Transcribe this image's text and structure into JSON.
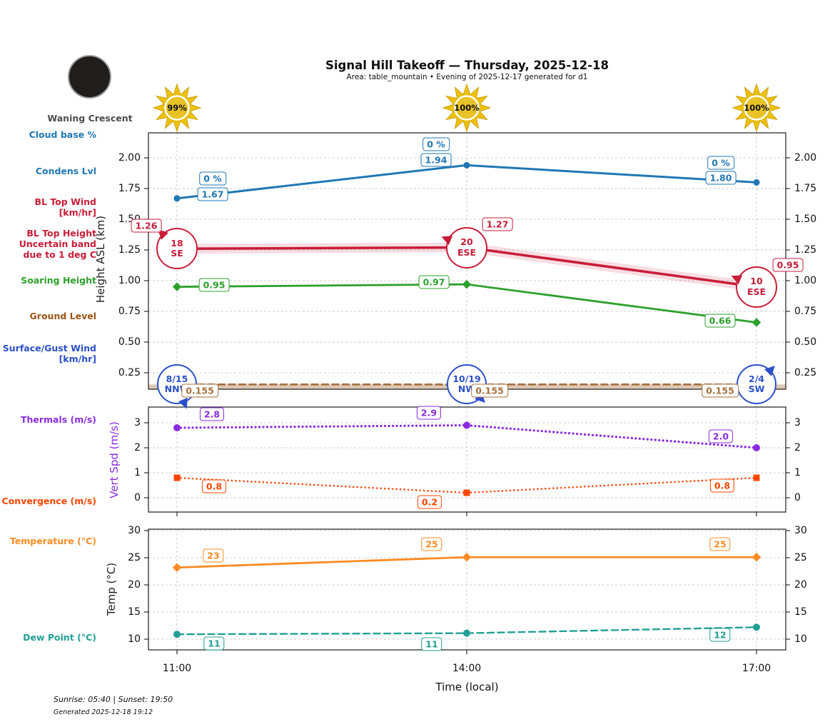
{
  "header": {
    "title": "Signal Hill Takeoff — Thursday, 2025-12-18",
    "subtitle": "Area: table_mountain • Evening of 2025-12-17 generated for d1",
    "moon_phase": "Waning Crescent",
    "sun_pcts": [
      "99%",
      "100%",
      "100%"
    ]
  },
  "colors": {
    "blue": "#2077b4",
    "crimson": "#c81d38",
    "green": "#2ca02c",
    "brown": "#a5703c",
    "brown_text": "#9c5518",
    "royal": "#2b50c8",
    "purple": "#8a2be2",
    "orangered": "#ff4500",
    "orange": "#fb8b23",
    "teal": "#23a096",
    "grid": "#cdcdcd",
    "spine": "#2b2b2b",
    "sun_gold": "#edc00c",
    "sun_core": "#e8c227"
  },
  "left_labels": [
    {
      "id": "cloud_base",
      "color_key": "blue",
      "lines": [
        "Cloud base %"
      ]
    },
    {
      "id": "condens",
      "color_key": "blue",
      "lines": [
        "Condens Lvl"
      ]
    },
    {
      "id": "bl_top_wind",
      "color_key": "crimson",
      "lines": [
        "BL Top Wind",
        "[km/hr]"
      ]
    },
    {
      "id": "bl_top_height",
      "color_key": "crimson",
      "lines": [
        "BL Top Height",
        "Uncertain band",
        "due to 1 deg C"
      ]
    },
    {
      "id": "soaring",
      "color_key": "green",
      "lines": [
        "Soaring Height"
      ]
    },
    {
      "id": "ground",
      "color_key": "brown_text",
      "lines": [
        "Ground Level"
      ]
    },
    {
      "id": "surface",
      "color_key": "royal",
      "lines": [
        "Surface/Gust Wind",
        "[km/hr]"
      ]
    },
    {
      "id": "thermals",
      "color_key": "purple",
      "lines": [
        "Thermals (m/s)"
      ]
    },
    {
      "id": "convergence",
      "color_key": "orangered",
      "lines": [
        "Convergence (m/s)"
      ]
    },
    {
      "id": "temperature",
      "color_key": "orange",
      "lines": [
        "Temperature (°C)"
      ]
    },
    {
      "id": "dew",
      "color_key": "teal",
      "lines": [
        "Dew Point (°C)"
      ]
    }
  ],
  "xaxis": {
    "title": "Time (local)",
    "ticks": [
      "11:00",
      "14:00",
      "17:00"
    ]
  },
  "footer": {
    "sun_times": "Sunrise: 05:40 | Sunset: 19:50",
    "generated": "Generated 2025-12-18 19:12"
  },
  "chart_data": [
    {
      "id": "height",
      "type": "line",
      "ylabel": "Height ASL (km)",
      "x": [
        "11:00",
        "14:00",
        "17:00"
      ],
      "ylim": [
        0.12,
        2.21
      ],
      "grid": true,
      "yticks": [
        2.0,
        1.75,
        1.5,
        1.25,
        1.0,
        0.75,
        0.5,
        0.25
      ],
      "ytick_labels": [
        "2.00",
        "1.75",
        "1.50",
        "1.25",
        "1.00",
        "0.75",
        "0.50",
        "0.25"
      ],
      "series": [
        {
          "name": "Condens Lvl",
          "color_key": "blue",
          "line": "solid",
          "width": 3,
          "marker": "circle",
          "marker_r": 4.5,
          "values": [
            1.67,
            1.94,
            1.8
          ],
          "point_labels": [
            "1.67",
            "1.94",
            "1.80"
          ],
          "cloud_base_labels": [
            "0 %",
            "0 %",
            "0 %"
          ]
        },
        {
          "name": "BL Top Height",
          "color_key": "crimson",
          "line": "solid",
          "width": 3.5,
          "marker": "none",
          "values": [
            1.26,
            1.27,
            0.95
          ],
          "point_labels": [
            "1.26",
            "1.27",
            "0.95"
          ],
          "uncertainty_band": 0.04,
          "wind_markers": [
            {
              "label": "18",
              "dir": "SE"
            },
            {
              "label": "20",
              "dir": "ESE"
            },
            {
              "label": "10",
              "dir": "ESE"
            }
          ]
        },
        {
          "name": "Soaring Height",
          "color_key": "green",
          "line": "solid",
          "width": 2.8,
          "marker": "diamond",
          "values": [
            0.95,
            0.97,
            0.66
          ],
          "point_labels": [
            "0.95",
            "0.97",
            "0.66"
          ]
        },
        {
          "name": "Ground Level",
          "color_key": "brown",
          "line": "dashed",
          "width": 2.6,
          "marker": "none",
          "fill_below": true,
          "values": [
            0.155,
            0.155,
            0.155
          ],
          "point_labels": [
            "0.155",
            "0.155",
            "0.155"
          ]
        },
        {
          "name": "Surface/Gust Wind",
          "color_key": "royal",
          "line": "none",
          "marker": "none",
          "values": [
            0.155,
            0.155,
            0.155
          ],
          "wind_markers": [
            {
              "label": "8/15",
              "dir": "NNW"
            },
            {
              "label": "10/19",
              "dir": "NW"
            },
            {
              "label": "2/4",
              "dir": "SW"
            }
          ]
        }
      ]
    },
    {
      "id": "vert_speed",
      "type": "line",
      "ylabel": "Vert Spd (m/s)",
      "x": [
        "11:00",
        "14:00",
        "17:00"
      ],
      "ylim": [
        -0.57,
        3.63
      ],
      "grid": true,
      "yticks": [
        3,
        2,
        1,
        0
      ],
      "ytick_labels": [
        "3",
        "2",
        "1",
        "0"
      ],
      "series": [
        {
          "name": "Thermals",
          "color_key": "purple",
          "line": "dotted",
          "width": 3.2,
          "marker": "circle",
          "marker_r": 5,
          "values": [
            2.8,
            2.9,
            2.0
          ],
          "point_labels": [
            "2.8",
            "2.9",
            "2.0"
          ]
        },
        {
          "name": "Convergence",
          "color_key": "orangered",
          "line": "dotted",
          "width": 2.6,
          "marker": "square",
          "values": [
            0.8,
            0.2,
            0.8
          ],
          "point_labels": [
            "0.8",
            "0.2",
            "0.8"
          ]
        }
      ]
    },
    {
      "id": "temperature",
      "type": "line",
      "ylabel": "Temp (°C)",
      "x": [
        "11:00",
        "14:00",
        "17:00"
      ],
      "ylim": [
        8.0,
        30.3
      ],
      "grid": true,
      "yticks": [
        30,
        25,
        20,
        15,
        10
      ],
      "ytick_labels": [
        "30",
        "25",
        "20",
        "15",
        "10"
      ],
      "series": [
        {
          "name": "Temperature",
          "color_key": "orange",
          "line": "solid",
          "width": 2.8,
          "marker": "diamond",
          "values": [
            23.2,
            25.1,
            25.1
          ],
          "point_labels": [
            "23",
            "25",
            "25"
          ]
        },
        {
          "name": "Dew Point",
          "color_key": "teal",
          "line": "dashed",
          "width": 2.4,
          "marker": "circle",
          "marker_r": 5,
          "values": [
            10.9,
            11.1,
            12.2
          ],
          "point_labels": [
            "11",
            "11",
            "12"
          ]
        }
      ]
    }
  ]
}
